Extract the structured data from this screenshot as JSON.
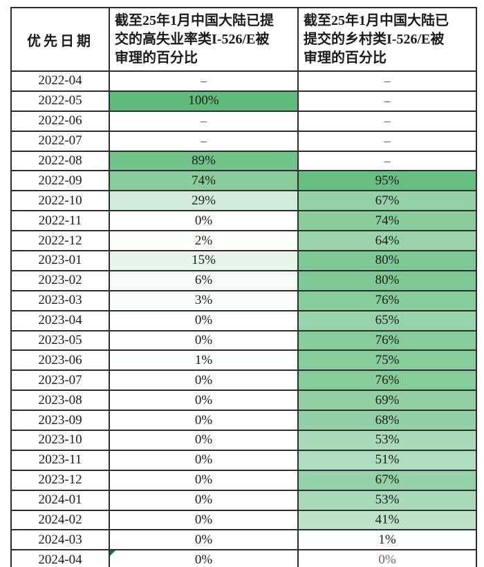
{
  "header": {
    "col1": "优先日期",
    "col2_lines": [
      "截至25年1月中国大陆已提",
      "交的高失业率类I-526/E被",
      "审理的百分比"
    ],
    "col3_lines": [
      "截至25年1月中国大陆已",
      "提交的乡村类I-526/E被",
      "审理的百分比"
    ]
  },
  "colors": {
    "border": "#2d2d2d",
    "text": "#1b1b1b",
    "na_text": "#4f4f4f",
    "scale_min_color": "#FFFFFF",
    "scale_max_color": "#5FBC7B",
    "corner_marker": "#0e7d1e",
    "anomaly_text": "#7b5d7b"
  },
  "chart_data": {
    "type": "table",
    "title": "",
    "columns": [
      "优先日期",
      "截至25年1月中国大陆已提交的高失业率类I-526/E被审理的百分比",
      "截至25年1月中国大陆已提交的乡村类I-526/E被审理的百分比"
    ],
    "na_text": "–",
    "conditional_format": {
      "style": "color-scale",
      "min_value": 0,
      "max_value": 100,
      "min_color": "#FFFFFF",
      "max_color": "#5FBC7B"
    },
    "rows": [
      {
        "date": "2022-04",
        "high": {
          "text": "–",
          "value": null
        },
        "rural": {
          "text": "–",
          "value": null
        }
      },
      {
        "date": "2022-05",
        "high": {
          "text": "100%",
          "value": 100
        },
        "rural": {
          "text": "–",
          "value": null
        }
      },
      {
        "date": "2022-06",
        "high": {
          "text": "–",
          "value": null
        },
        "rural": {
          "text": "–",
          "value": null
        }
      },
      {
        "date": "2022-07",
        "high": {
          "text": "–",
          "value": null
        },
        "rural": {
          "text": "–",
          "value": null
        }
      },
      {
        "date": "2022-08",
        "high": {
          "text": "89%",
          "value": 89
        },
        "rural": {
          "text": "–",
          "value": null
        }
      },
      {
        "date": "2022-09",
        "high": {
          "text": "74%",
          "value": 74
        },
        "rural": {
          "text": "95%",
          "value": 95
        }
      },
      {
        "date": "2022-10",
        "high": {
          "text": "29%",
          "value": 29
        },
        "rural": {
          "text": "67%",
          "value": 67
        }
      },
      {
        "date": "2022-11",
        "high": {
          "text": "0%",
          "value": 0
        },
        "rural": {
          "text": "74%",
          "value": 74
        }
      },
      {
        "date": "2022-12",
        "high": {
          "text": "2%",
          "value": 2
        },
        "rural": {
          "text": "64%",
          "value": 64
        }
      },
      {
        "date": "2023-01",
        "high": {
          "text": "15%",
          "value": 15
        },
        "rural": {
          "text": "80%",
          "value": 80
        }
      },
      {
        "date": "2023-02",
        "high": {
          "text": "6%",
          "value": 6
        },
        "rural": {
          "text": "80%",
          "value": 80
        }
      },
      {
        "date": "2023-03",
        "high": {
          "text": "3%",
          "value": 3
        },
        "rural": {
          "text": "76%",
          "value": 76
        }
      },
      {
        "date": "2023-04",
        "high": {
          "text": "0%",
          "value": 0
        },
        "rural": {
          "text": "65%",
          "value": 65
        }
      },
      {
        "date": "2023-05",
        "high": {
          "text": "0%",
          "value": 0
        },
        "rural": {
          "text": "76%",
          "value": 76
        }
      },
      {
        "date": "2023-06",
        "high": {
          "text": "1%",
          "value": 1
        },
        "rural": {
          "text": "75%",
          "value": 75
        }
      },
      {
        "date": "2023-07",
        "high": {
          "text": "0%",
          "value": 0
        },
        "rural": {
          "text": "76%",
          "value": 76
        }
      },
      {
        "date": "2023-08",
        "high": {
          "text": "0%",
          "value": 0
        },
        "rural": {
          "text": "69%",
          "value": 69
        }
      },
      {
        "date": "2023-09",
        "high": {
          "text": "0%",
          "value": 0
        },
        "rural": {
          "text": "68%",
          "value": 68
        }
      },
      {
        "date": "2023-10",
        "high": {
          "text": "0%",
          "value": 0
        },
        "rural": {
          "text": "53%",
          "value": 53
        }
      },
      {
        "date": "2023-11",
        "high": {
          "text": "0%",
          "value": 0
        },
        "rural": {
          "text": "51%",
          "value": 51
        }
      },
      {
        "date": "2023-12",
        "high": {
          "text": "0%",
          "value": 0
        },
        "rural": {
          "text": "67%",
          "value": 67
        }
      },
      {
        "date": "2024-01",
        "high": {
          "text": "0%",
          "value": 0
        },
        "rural": {
          "text": "53%",
          "value": 53
        }
      },
      {
        "date": "2024-02",
        "high": {
          "text": "0%",
          "value": 0
        },
        "rural": {
          "text": "41%",
          "value": 41
        }
      },
      {
        "date": "2024-03",
        "high": {
          "text": "0%",
          "value": 0
        },
        "rural": {
          "text": "1%",
          "value": 1
        }
      },
      {
        "date": "2024-04",
        "high": {
          "text": "0%",
          "value": 0,
          "corner_marker": true
        },
        "rural": {
          "text": "0%",
          "value": 0,
          "text_color": "#7b5d7b"
        }
      }
    ]
  }
}
